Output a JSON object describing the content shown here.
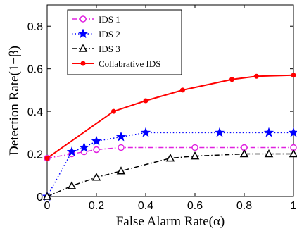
{
  "chart_data": {
    "type": "line",
    "xlabel": "False Alarm Rate(α)",
    "ylabel": "Detection Rate(1−β)",
    "xlim": [
      0,
      1
    ],
    "ylim": [
      0,
      0.9
    ],
    "xticks": [
      0,
      0.2,
      0.4,
      0.6,
      0.8,
      1
    ],
    "xtick_labels": [
      "0",
      "0.2",
      "0.4",
      "0.6",
      "0.8",
      "1"
    ],
    "yticks": [
      0,
      0.2,
      0.4,
      0.6,
      0.8
    ],
    "ytick_labels": [
      "0",
      "0.2",
      "0.4",
      "0.6",
      "0.8"
    ],
    "grid": false,
    "legend_position": "top-left",
    "series": [
      {
        "name": "IDS 1",
        "color": "#e020e0",
        "dash": "dash-dot",
        "marker": "circle",
        "x": [
          0,
          0.1,
          0.15,
          0.2,
          0.3,
          0.6,
          0.8,
          1.0
        ],
        "y": [
          0.18,
          0.2,
          0.21,
          0.22,
          0.23,
          0.23,
          0.23,
          0.23
        ]
      },
      {
        "name": "IDS 2",
        "color": "#0000ff",
        "dash": "dotted",
        "marker": "star",
        "x": [
          0,
          0.1,
          0.15,
          0.2,
          0.3,
          0.4,
          0.7,
          0.9,
          1.0
        ],
        "y": [
          0,
          0.21,
          0.23,
          0.26,
          0.28,
          0.3,
          0.3,
          0.3,
          0.3
        ]
      },
      {
        "name": "IDS 3",
        "color": "#000000",
        "dash": "dash-dot",
        "marker": "triangle",
        "x": [
          0,
          0.1,
          0.2,
          0.3,
          0.5,
          0.6,
          0.8,
          0.9,
          1.0
        ],
        "y": [
          0,
          0.05,
          0.09,
          0.12,
          0.18,
          0.19,
          0.2,
          0.2,
          0.2
        ]
      },
      {
        "name": "Collabrative IDS",
        "color": "#ff0000",
        "dash": "solid",
        "marker": "dot",
        "x": [
          0,
          0.27,
          0.4,
          0.55,
          0.75,
          0.85,
          1.0
        ],
        "y": [
          0.18,
          0.4,
          0.45,
          0.5,
          0.55,
          0.565,
          0.57
        ]
      }
    ]
  }
}
